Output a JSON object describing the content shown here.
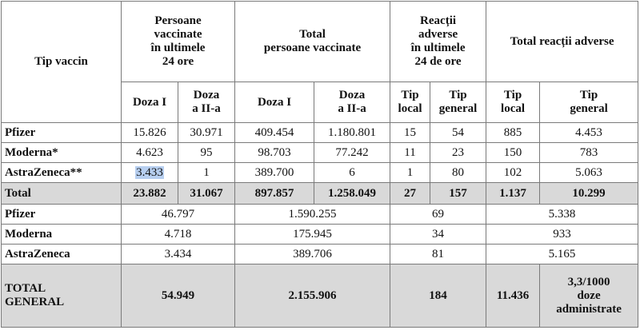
{
  "header": {
    "tip_vaccin": "Tip vaccin",
    "group1": [
      "Persoane",
      "vaccinate",
      "în ultimele",
      "24 ore"
    ],
    "group2": [
      "Total",
      "persoane vaccinate"
    ],
    "group3": [
      "Reacții",
      "adverse",
      "în ultimele",
      "24 de ore"
    ],
    "group4": "Total reacții adverse",
    "doza1": "Doza I",
    "doza2": [
      "Doza",
      "a II-a"
    ],
    "tip_local": [
      "Tip",
      "local"
    ],
    "tip_general": [
      "Tip",
      "general"
    ]
  },
  "rows": [
    {
      "name": "Pfizer",
      "d1_24": "15.826",
      "d2_24": "30.971",
      "d1_tot": "409.454",
      "d2_tot": "1.180.801",
      "loc_24": "15",
      "gen_24": "54",
      "loc_tot": "885",
      "gen_tot": "4.453"
    },
    {
      "name": "Moderna*",
      "d1_24": "4.623",
      "d2_24": "95",
      "d1_tot": "98.703",
      "d2_tot": "77.242",
      "loc_24": "11",
      "gen_24": "23",
      "loc_tot": "150",
      "gen_tot": "783"
    },
    {
      "name": "AstraZeneca**",
      "d1_24": "3.433",
      "d2_24": "1",
      "d1_tot": "389.700",
      "d2_tot": "6",
      "loc_24": "1",
      "gen_24": "80",
      "loc_tot": "102",
      "gen_tot": "5.063"
    }
  ],
  "total": {
    "name": "Total",
    "d1_24": "23.882",
    "d2_24": "31.067",
    "d1_tot": "897.857",
    "d2_tot": "1.258.049",
    "loc_24": "27",
    "gen_24": "157",
    "loc_tot": "1.137",
    "gen_tot": "10.299"
  },
  "summary": [
    {
      "name": "Pfizer",
      "v24": "46.797",
      "vtot": "1.590.255",
      "r24": "69",
      "rtot": "5.338"
    },
    {
      "name": "Moderna",
      "v24": "4.718",
      "vtot": "175.945",
      "r24": "34",
      "rtot": "933"
    },
    {
      "name": "AstraZeneca",
      "v24": "3.434",
      "vtot": "389.706",
      "r24": "81",
      "rtot": "5.165"
    }
  ],
  "grand_total": {
    "name": [
      "TOTAL",
      "GENERAL"
    ],
    "v24": "54.949",
    "vtot": "2.155.906",
    "r24": "184",
    "rtot": "11.436",
    "rate": [
      "3,3/1000",
      "doze",
      "administrate"
    ]
  }
}
